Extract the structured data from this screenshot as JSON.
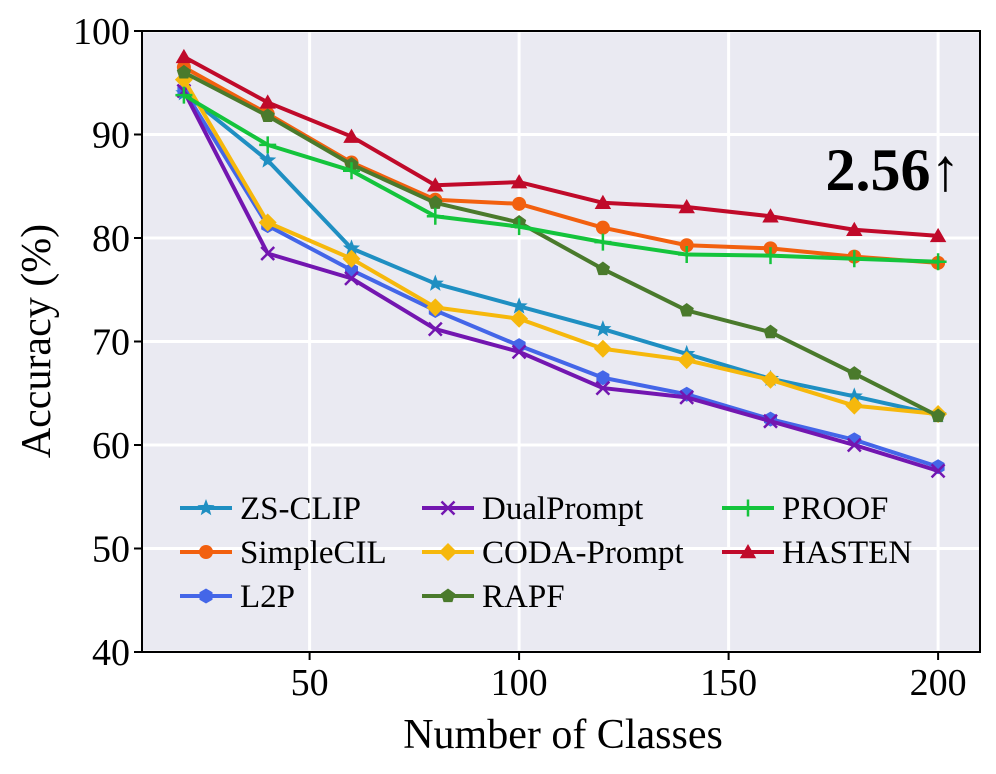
{
  "chart_data": {
    "type": "line",
    "xlabel": "Number of Classes",
    "ylabel": "Accuracy (%)",
    "xlim": [
      10,
      210
    ],
    "ylim": [
      40,
      100
    ],
    "xticks": [
      50,
      100,
      150,
      200
    ],
    "yticks": [
      40,
      50,
      60,
      70,
      80,
      90,
      100
    ],
    "grid": true,
    "legend_location": "lower-left",
    "x": [
      20,
      40,
      60,
      80,
      100,
      120,
      140,
      160,
      180,
      200
    ],
    "series": [
      {
        "name": "ZS-CLIP",
        "color": "#1f8fc2",
        "marker": "star",
        "values": [
          94.0,
          87.5,
          79.0,
          75.6,
          73.4,
          71.2,
          68.8,
          66.4,
          64.7,
          62.9
        ]
      },
      {
        "name": "SimpleCIL",
        "color": "#f2600f",
        "marker": "circle",
        "values": [
          96.5,
          92.0,
          87.3,
          83.7,
          83.3,
          81.0,
          79.3,
          79.0,
          78.2,
          77.6
        ]
      },
      {
        "name": "L2P",
        "color": "#4466e8",
        "marker": "hexagon",
        "values": [
          94.3,
          81.2,
          76.9,
          73.0,
          69.6,
          66.5,
          64.9,
          62.5,
          60.5,
          57.9
        ]
      },
      {
        "name": "DualPrompt",
        "color": "#7316b0",
        "marker": "x",
        "values": [
          94.2,
          78.5,
          76.1,
          71.2,
          69.0,
          65.5,
          64.6,
          62.3,
          60.0,
          57.5
        ]
      },
      {
        "name": "CODA-Prompt",
        "color": "#f6b80c",
        "marker": "diamond",
        "values": [
          95.3,
          81.5,
          78.0,
          73.3,
          72.2,
          69.3,
          68.2,
          66.3,
          63.8,
          63.0
        ]
      },
      {
        "name": "RAPF",
        "color": "#4a7a2c",
        "marker": "pentagon",
        "values": [
          96.0,
          91.8,
          87.1,
          83.4,
          81.5,
          77.0,
          73.0,
          70.9,
          66.9,
          62.8
        ]
      },
      {
        "name": "PROOF",
        "color": "#14c43c",
        "marker": "plus",
        "values": [
          93.8,
          89.0,
          86.5,
          82.1,
          81.1,
          79.6,
          78.4,
          78.3,
          78.0,
          77.7
        ]
      },
      {
        "name": "HASTEN",
        "color": "#c00a2a",
        "marker": "triangle",
        "values": [
          97.5,
          93.1,
          89.8,
          85.1,
          85.4,
          83.4,
          83.0,
          82.1,
          80.8,
          80.2
        ]
      }
    ],
    "annotation": "2.56↑"
  }
}
